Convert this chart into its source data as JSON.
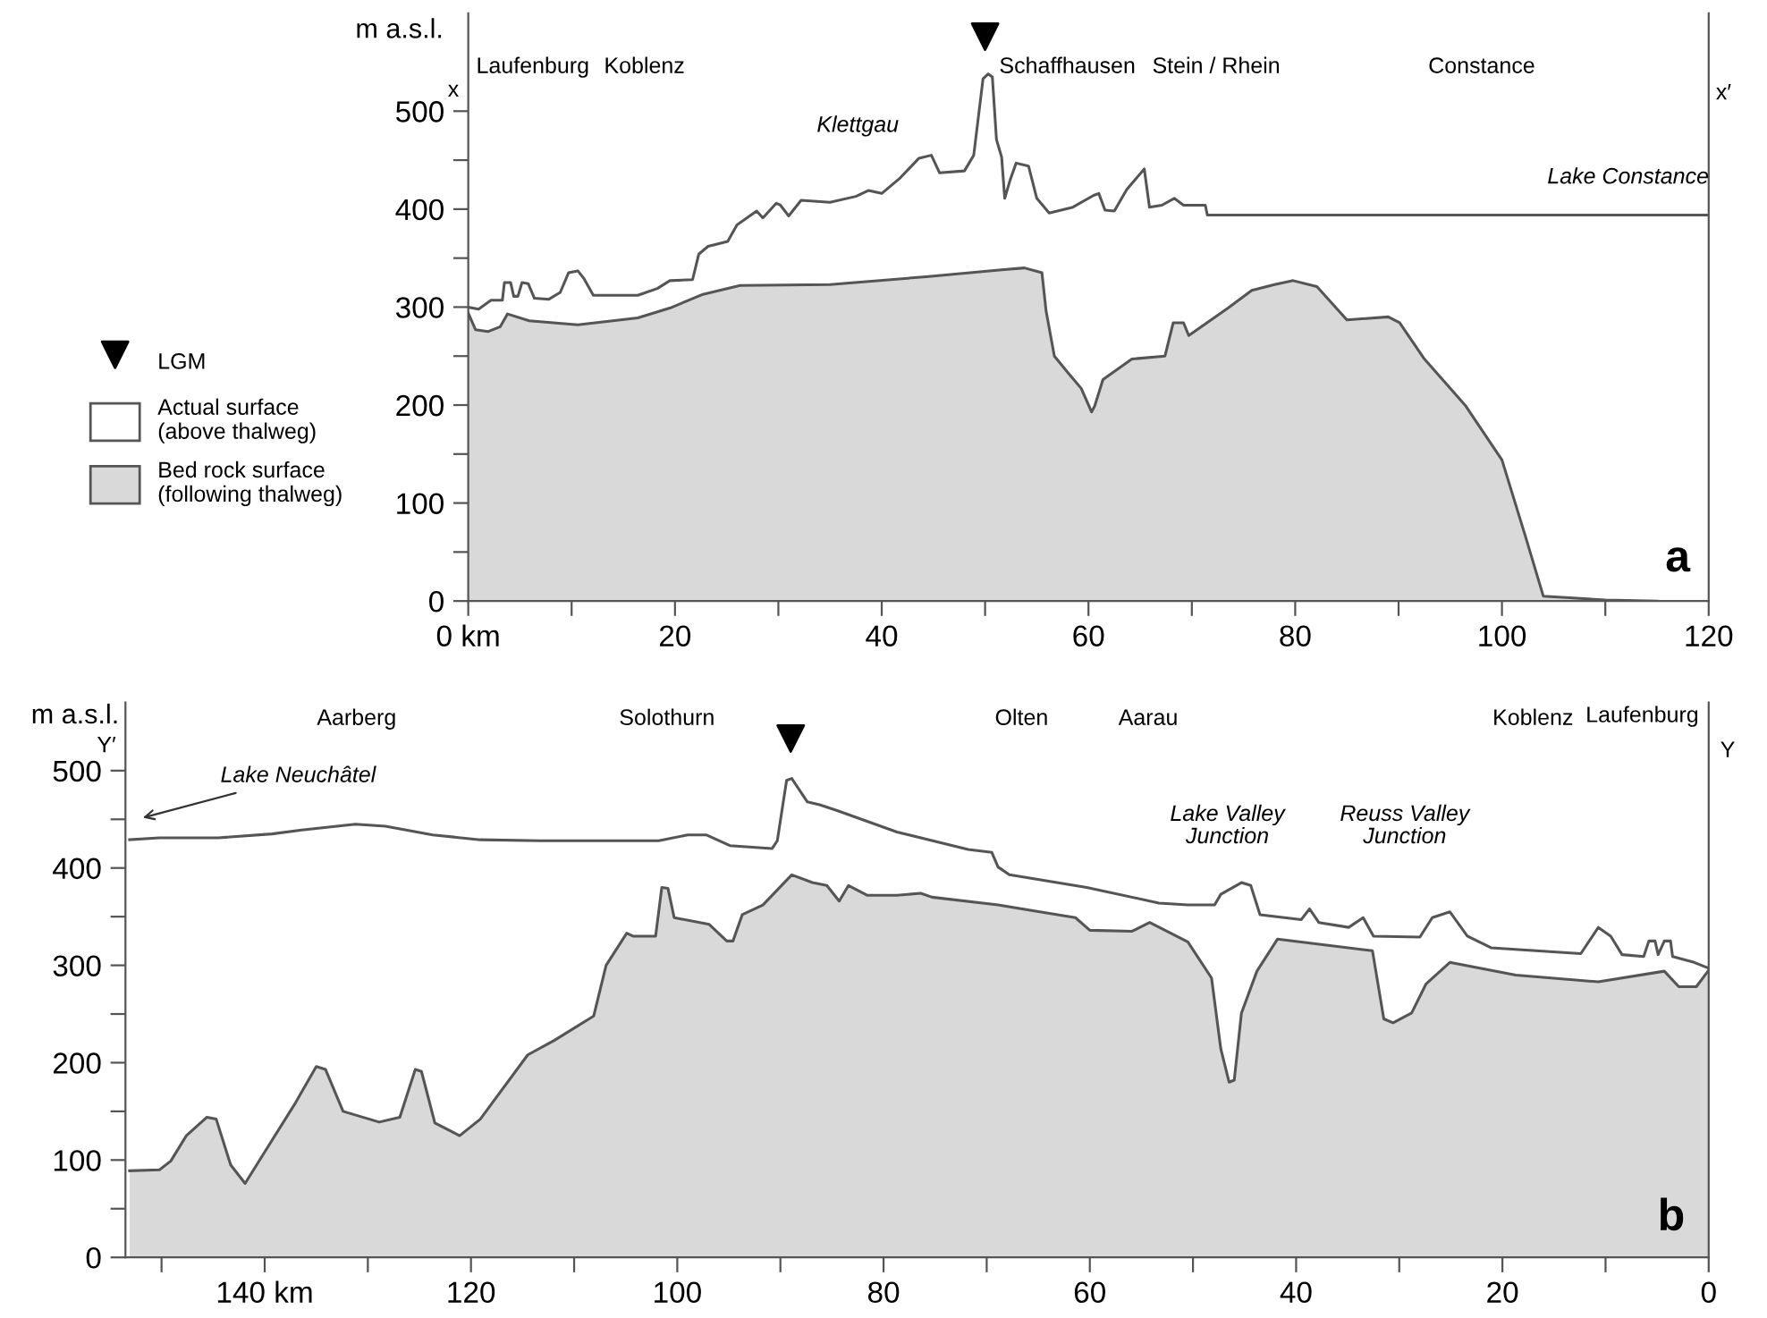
{
  "chart_data": [
    {
      "type": "area",
      "title": "a",
      "ylabel": "m a.s.l.",
      "legend": "left",
      "xlim": [
        0,
        120
      ],
      "ylim": [
        0,
        600
      ],
      "xticks": [
        {
          "value": 0,
          "label": "0 km"
        },
        {
          "value": 10,
          "label": null
        },
        20,
        {
          "value": 30,
          "label": null
        },
        40,
        {
          "value": 50,
          "label": null
        },
        60,
        {
          "value": 70,
          "label": null
        },
        80,
        {
          "value": 90,
          "label": null
        },
        100,
        {
          "value": 110,
          "label": null
        },
        120
      ],
      "yticks": [
        0,
        {
          "value": 50,
          "label": null
        },
        100,
        {
          "value": 150,
          "label": null
        },
        200,
        {
          "value": 250,
          "label": null
        },
        300,
        {
          "value": 350,
          "label": null
        },
        400,
        {
          "value": 450,
          "label": null
        },
        500
      ],
      "annotations": [
        "Laufenburg",
        "Koblenz",
        "Klettgau",
        "Schaffhausen",
        "Stein / Rhein",
        "Constance",
        "Lake Constance",
        "x",
        "x′"
      ],
      "series": [
        {
          "name": "LGM",
          "type": "scatter",
          "marker": "triangle",
          "color": "#000000",
          "x": [
            50
          ],
          "values": [
            576
          ]
        },
        {
          "name": "Actual surface\n(above thalweg)",
          "type": "line",
          "color": "#555555",
          "x": [
            0,
            1,
            2.2,
            3.3,
            3.5,
            4.1,
            4.4,
            4.8,
            5.2,
            5.8,
            6.4,
            7.8,
            8.9,
            9.7,
            10.6,
            11.2,
            12.1,
            16.4,
            18.3,
            19.5,
            21.7,
            22.3,
            23.2,
            25.1,
            26,
            27.9,
            28.5,
            29.8,
            30.2,
            31,
            32.2,
            35,
            37.5,
            38.7,
            40,
            41.8,
            43.6,
            44.8,
            45.6,
            48,
            48.9,
            49.8,
            50.3,
            50.7,
            51.1,
            51.6,
            51.9,
            52.4,
            53,
            54.2,
            55,
            56.2,
            58.5,
            60.5,
            61,
            61.6,
            62.5,
            63.7,
            65.4,
            65.9,
            67.1,
            68.3,
            69.2,
            71.3,
            71.5,
            120
          ],
          "values": [
            300,
            298,
            307,
            307,
            325,
            325,
            311,
            311,
            325,
            324,
            309,
            308,
            315,
            335,
            337,
            329,
            312,
            312,
            319,
            327,
            328,
            354,
            362,
            367,
            384,
            398,
            391,
            406,
            404,
            393,
            409,
            407,
            413,
            419,
            416,
            432,
            452,
            455,
            437,
            439,
            455,
            533,
            538,
            535,
            471,
            453,
            411,
            429,
            447,
            444,
            411,
            396,
            402,
            414,
            416,
            399,
            398,
            420,
            441,
            402,
            404,
            411,
            404,
            404,
            394,
            394
          ]
        },
        {
          "name": "Bed rock surface\n(following thalweg)",
          "color": "#d9d9d9",
          "x": [
            0,
            0.7,
            1.9,
            3.1,
            3.8,
            5.9,
            10.6,
            16.4,
            19.5,
            22.7,
            26.3,
            35,
            44.3,
            51.6,
            53.8,
            55.5,
            55.9,
            56.7,
            58.1,
            59.3,
            60.3,
            60.6,
            61.4,
            64.2,
            67.4,
            68.2,
            69.2,
            69.7,
            73.5,
            75.8,
            78,
            79.8,
            82.1,
            85,
            89,
            90.1,
            92.5,
            96.5,
            100,
            102.3,
            104,
            110,
            115
          ],
          "values": [
            294,
            277,
            275,
            280,
            293,
            286,
            282,
            289,
            299,
            313,
            322,
            323,
            331,
            338,
            340,
            335,
            296,
            250,
            232,
            217,
            193,
            199,
            226,
            247,
            250,
            284,
            284,
            271,
            299,
            317,
            323,
            327,
            321,
            287,
            290,
            284,
            247,
            199,
            144,
            65,
            5,
            1,
            0
          ]
        }
      ]
    },
    {
      "type": "area",
      "title": "b",
      "ylabel": "m a.s.l.",
      "xlim": [
        153.5,
        0
      ],
      "ylim": [
        0,
        570
      ],
      "xticks": [
        {
          "value": 150,
          "label": null
        },
        {
          "value": 140,
          "label": "140 km"
        },
        {
          "value": 130,
          "label": null
        },
        120,
        {
          "value": 110,
          "label": null
        },
        100,
        {
          "value": 90,
          "label": null
        },
        80,
        {
          "value": 70,
          "label": null
        },
        60,
        {
          "value": 50,
          "label": null
        },
        40,
        {
          "value": 30,
          "label": null
        },
        20,
        {
          "value": 10,
          "label": null
        },
        0
      ],
      "yticks": [
        0,
        {
          "value": 50,
          "label": null
        },
        100,
        {
          "value": 150,
          "label": null
        },
        200,
        {
          "value": 250,
          "label": null
        },
        300,
        {
          "value": 350,
          "label": null
        },
        400,
        {
          "value": 450,
          "label": null
        },
        500
      ],
      "annotations": [
        "Aarberg",
        "Solothurn",
        "Olten",
        "Aarau",
        "Koblenz",
        "Laufenburg",
        "Y′",
        "Y",
        "Lake Neuchâtel",
        "Lake Valley\nJunction",
        "Reuss Valley\nJunction"
      ],
      "series": [
        {
          "type": "scatter",
          "marker": "triangle",
          "color": "#000000",
          "x": [
            89
          ],
          "values": [
            533
          ]
        },
        {
          "type": "line",
          "color": "#555555",
          "x": [
            153.1,
            150.2,
            144.5,
            139.3,
            136.4,
            131.2,
            128.3,
            123.7,
            119.1,
            113.3,
            101.8,
            99,
            97.2,
            94.9,
            90.8,
            90.3,
            89.4,
            88.9,
            87.4,
            86.2,
            84.5,
            78.7,
            71.8,
            69.5,
            68.9,
            67.8,
            60.3,
            53.3,
            50.5,
            47.9,
            47.3,
            45.3,
            44.4,
            43.5,
            39.5,
            38.7,
            37.8,
            34.9,
            33.5,
            32.5,
            28,
            26.8,
            25.1,
            23.4,
            21.1,
            12.4,
            10.7,
            9.5,
            8.4,
            6.3,
            5.8,
            5.2,
            4.9,
            4.3,
            3.7,
            3.5,
            1.4,
            0
          ],
          "values": [
            429,
            431,
            431,
            435,
            439,
            445,
            443,
            434,
            429,
            428,
            428,
            434,
            434,
            423,
            420,
            428,
            490,
            492,
            468,
            465,
            459,
            437,
            419,
            416,
            401,
            393,
            380,
            364,
            362,
            362,
            373,
            385,
            382,
            352,
            347,
            358,
            344,
            339,
            349,
            330,
            329,
            349,
            355,
            330,
            318,
            312,
            339,
            330,
            311,
            309,
            325,
            325,
            311,
            325,
            325,
            309,
            303,
            297
          ]
        },
        {
          "color": "#d9d9d9",
          "x": [
            153.1,
            150.2,
            149.1,
            147.6,
            145.6,
            144.7,
            143.3,
            141.9,
            139.9,
            137,
            135,
            134.1,
            132.4,
            128.9,
            126.9,
            125.4,
            124.8,
            123.5,
            121.1,
            119.1,
            114.5,
            111.9,
            108.1,
            106.9,
            104.9,
            104.3,
            102.1,
            101.5,
            100.9,
            100.3,
            96.9,
            95.2,
            94.6,
            93.7,
            91.7,
            88.9,
            86.9,
            85.5,
            84.3,
            83.4,
            81.6,
            78.7,
            76.4,
            75.3,
            68.9,
            61.4,
            60,
            55.9,
            54.2,
            50.5,
            48.2,
            47.3,
            46.5,
            46,
            45.3,
            43.8,
            41.8,
            32.6,
            31.5,
            30.6,
            28.8,
            27.4,
            25.1,
            18.7,
            10.7,
            4.3,
            2.9,
            1.2,
            0
          ],
          "values": [
            89,
            90,
            99,
            125,
            144,
            142,
            95,
            76,
            110,
            159,
            196,
            193,
            150,
            139,
            144,
            193,
            191,
            138,
            125,
            142,
            208,
            223,
            248,
            300,
            333,
            330,
            330,
            380,
            379,
            349,
            342,
            325,
            325,
            352,
            362,
            393,
            385,
            382,
            366,
            382,
            372,
            372,
            374,
            370,
            362,
            349,
            336,
            335,
            344,
            324,
            287,
            214,
            180,
            182,
            251,
            294,
            327,
            315,
            245,
            241,
            251,
            281,
            303,
            290,
            283,
            294,
            278,
            278,
            295
          ]
        }
      ]
    }
  ]
}
